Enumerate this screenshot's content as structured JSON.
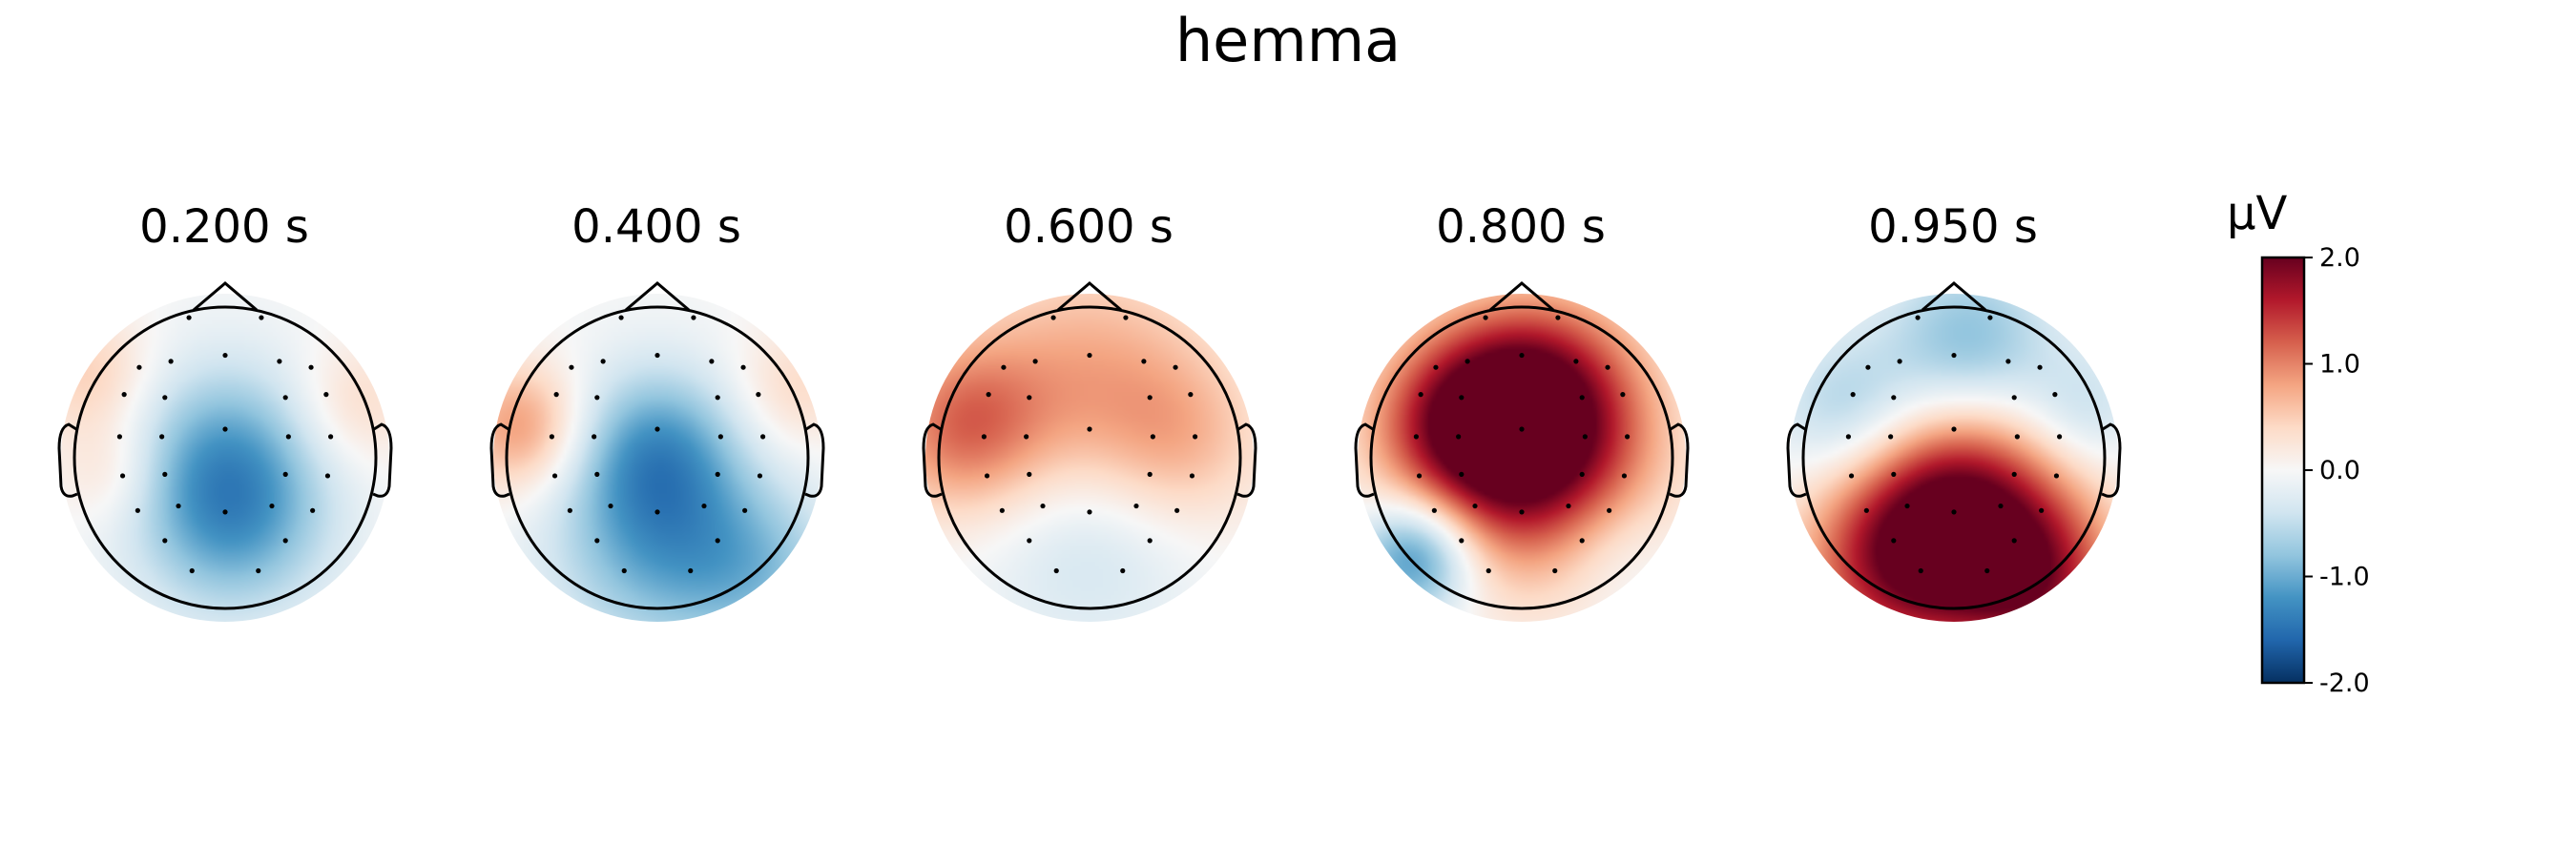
{
  "figure": {
    "title": "hemma"
  },
  "chart_data": {
    "type": "heatmap",
    "subtype": "eeg-topomap",
    "title": "hemma",
    "colormap": "RdBu_r",
    "colorbar": {
      "unit": "µV",
      "range": [
        -2.0,
        2.0
      ],
      "ticks": [
        2.0,
        1.0,
        0.0,
        -1.0,
        -2.0
      ],
      "tick_labels": [
        "2.0",
        "1.0",
        "0.0",
        "-1.0",
        "-2.0"
      ],
      "placement": "right"
    },
    "sensors_shown": true,
    "panels": [
      {
        "time_label": "0.200 s",
        "time": 0.2,
        "sources": [
          {
            "x": 0.0,
            "y": 0.05,
            "v": -0.8,
            "s": 0.45
          },
          {
            "x": 0.05,
            "y": -0.45,
            "v": -0.9,
            "s": 0.45
          },
          {
            "x": -0.9,
            "y": 0.55,
            "v": 0.5,
            "s": 0.3
          },
          {
            "x": 0.85,
            "y": 0.35,
            "v": 0.4,
            "s": 0.3
          },
          {
            "x": -0.75,
            "y": -0.1,
            "v": 0.35,
            "s": 0.25
          }
        ]
      },
      {
        "time_label": "0.400 s",
        "time": 0.4,
        "sources": [
          {
            "x": 0.0,
            "y": 0.05,
            "v": -1.0,
            "s": 0.4
          },
          {
            "x": 0.0,
            "y": -0.6,
            "v": -0.9,
            "s": 0.5
          },
          {
            "x": -0.9,
            "y": 0.2,
            "v": 0.9,
            "s": 0.3
          },
          {
            "x": 0.9,
            "y": 0.45,
            "v": 0.4,
            "s": 0.3
          },
          {
            "x": 0.7,
            "y": -0.75,
            "v": -0.6,
            "s": 0.4
          }
        ]
      },
      {
        "time_label": "0.600 s",
        "time": 0.6,
        "sources": [
          {
            "x": 0.0,
            "y": 0.5,
            "v": 0.75,
            "s": 0.6
          },
          {
            "x": -0.85,
            "y": 0.2,
            "v": 1.0,
            "s": 0.4
          },
          {
            "x": 0.0,
            "y": -0.55,
            "v": -0.45,
            "s": 0.5
          },
          {
            "x": 0.6,
            "y": 0.1,
            "v": 0.5,
            "s": 0.4
          }
        ]
      },
      {
        "time_label": "0.800 s",
        "time": 0.8,
        "sources": [
          {
            "x": 0.05,
            "y": 0.0,
            "v": 1.8,
            "s": 0.55
          },
          {
            "x": 0.1,
            "y": 0.45,
            "v": 1.2,
            "s": 0.45
          },
          {
            "x": -0.45,
            "y": 0.25,
            "v": 1.0,
            "s": 0.4
          },
          {
            "x": -0.7,
            "y": -0.65,
            "v": -1.4,
            "s": 0.28
          },
          {
            "x": 0.6,
            "y": -0.6,
            "v": -0.3,
            "s": 0.3
          }
        ]
      },
      {
        "time_label": "0.950 s",
        "time": 0.95,
        "sources": [
          {
            "x": 0.05,
            "y": -0.35,
            "v": 1.9,
            "s": 0.5
          },
          {
            "x": -0.4,
            "y": -0.75,
            "v": 1.2,
            "s": 0.45
          },
          {
            "x": 0.55,
            "y": -0.85,
            "v": 1.3,
            "s": 0.4
          },
          {
            "x": 0.1,
            "y": 0.75,
            "v": -0.9,
            "s": 0.4
          },
          {
            "x": -0.7,
            "y": 0.3,
            "v": -0.7,
            "s": 0.35
          },
          {
            "x": 0.85,
            "y": 0.3,
            "v": -0.5,
            "s": 0.3
          }
        ]
      }
    ]
  }
}
